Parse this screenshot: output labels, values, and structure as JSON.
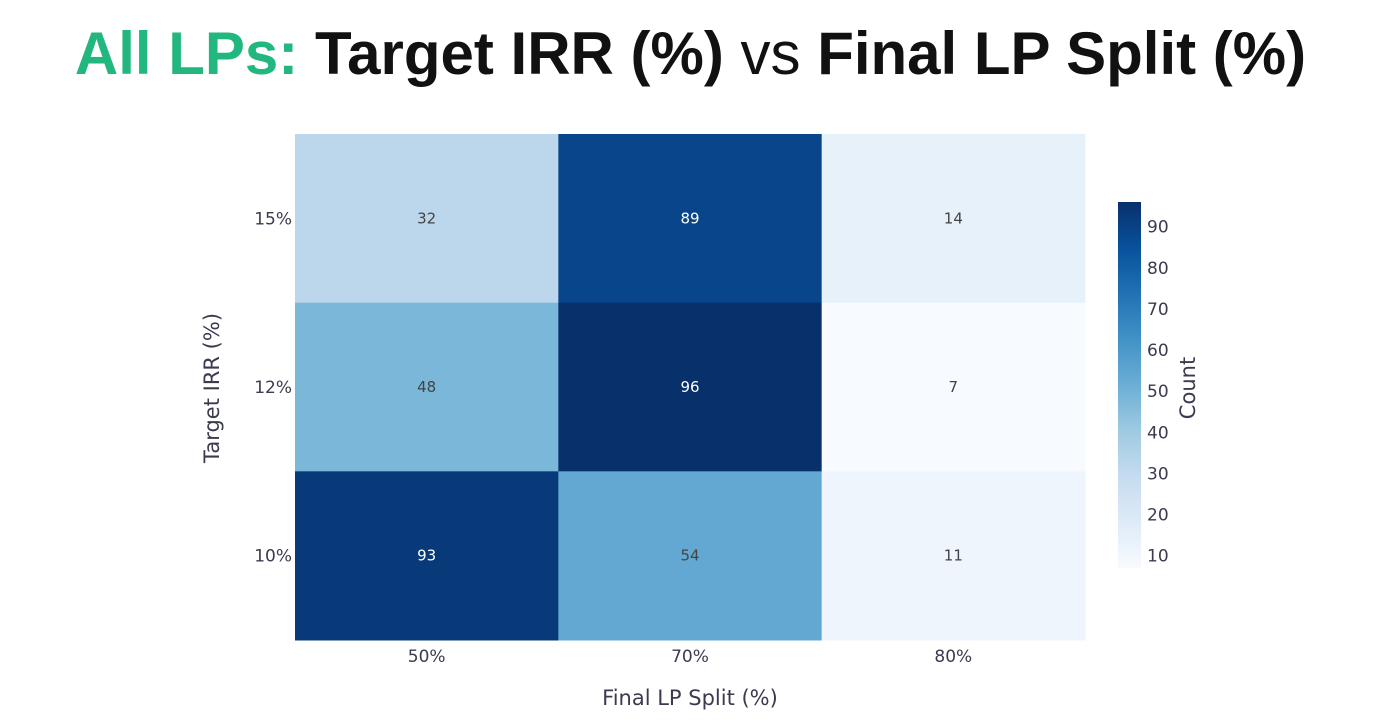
{
  "title": {
    "part1": "All LPs:",
    "part2": "Target IRR (%)",
    "part3": "vs",
    "part4": "Final LP Split (%)"
  },
  "colors": {
    "title_accent": "#22b77e",
    "colorscale": [
      "#f7fbff",
      "#deebf7",
      "#c6dbef",
      "#9ecae1",
      "#6baed6",
      "#4292c6",
      "#2171b5",
      "#08519c",
      "#08306b"
    ]
  },
  "chart_data": {
    "type": "heatmap",
    "xlabel": "Final LP Split (%)",
    "ylabel": "Target IRR (%)",
    "x_categories": [
      "50%",
      "70%",
      "80%"
    ],
    "y_categories": [
      "15%",
      "12%",
      "10%"
    ],
    "z": [
      [
        32,
        89,
        14
      ],
      [
        48,
        96,
        7
      ],
      [
        93,
        54,
        11
      ]
    ],
    "colorbar": {
      "title": "Count",
      "range": [
        7,
        96
      ],
      "ticks": [
        10,
        20,
        30,
        40,
        50,
        60,
        70,
        80,
        90
      ]
    }
  }
}
